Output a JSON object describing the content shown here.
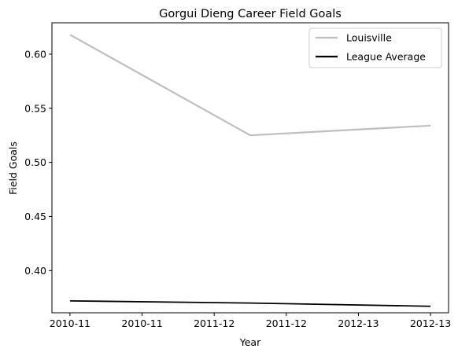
{
  "chart_data": {
    "type": "line",
    "title": "Gorgui Dieng Career Field Goals",
    "xlabel": "Year",
    "ylabel": "Field Goals",
    "x_tick_labels": [
      "2010-11",
      "2010-11",
      "2011-12",
      "2011-12",
      "2012-13",
      "2012-13"
    ],
    "x": [
      0,
      1,
      2
    ],
    "x_categories": [
      "2010-11",
      "2011-12",
      "2012-13"
    ],
    "xlim": [
      -0.1,
      2.1
    ],
    "ylim": [
      0.361,
      0.629
    ],
    "y_ticks": [
      "0.40",
      "0.45",
      "0.50",
      "0.55",
      "0.60"
    ],
    "grid": false,
    "legend_position": "top-right",
    "series": [
      {
        "name": "Louisville",
        "color": "#bfbfbf",
        "values": [
          0.618,
          0.525,
          0.534
        ]
      },
      {
        "name": "League Average",
        "color": "#000000",
        "values": [
          0.372,
          0.37,
          0.367
        ]
      }
    ]
  }
}
